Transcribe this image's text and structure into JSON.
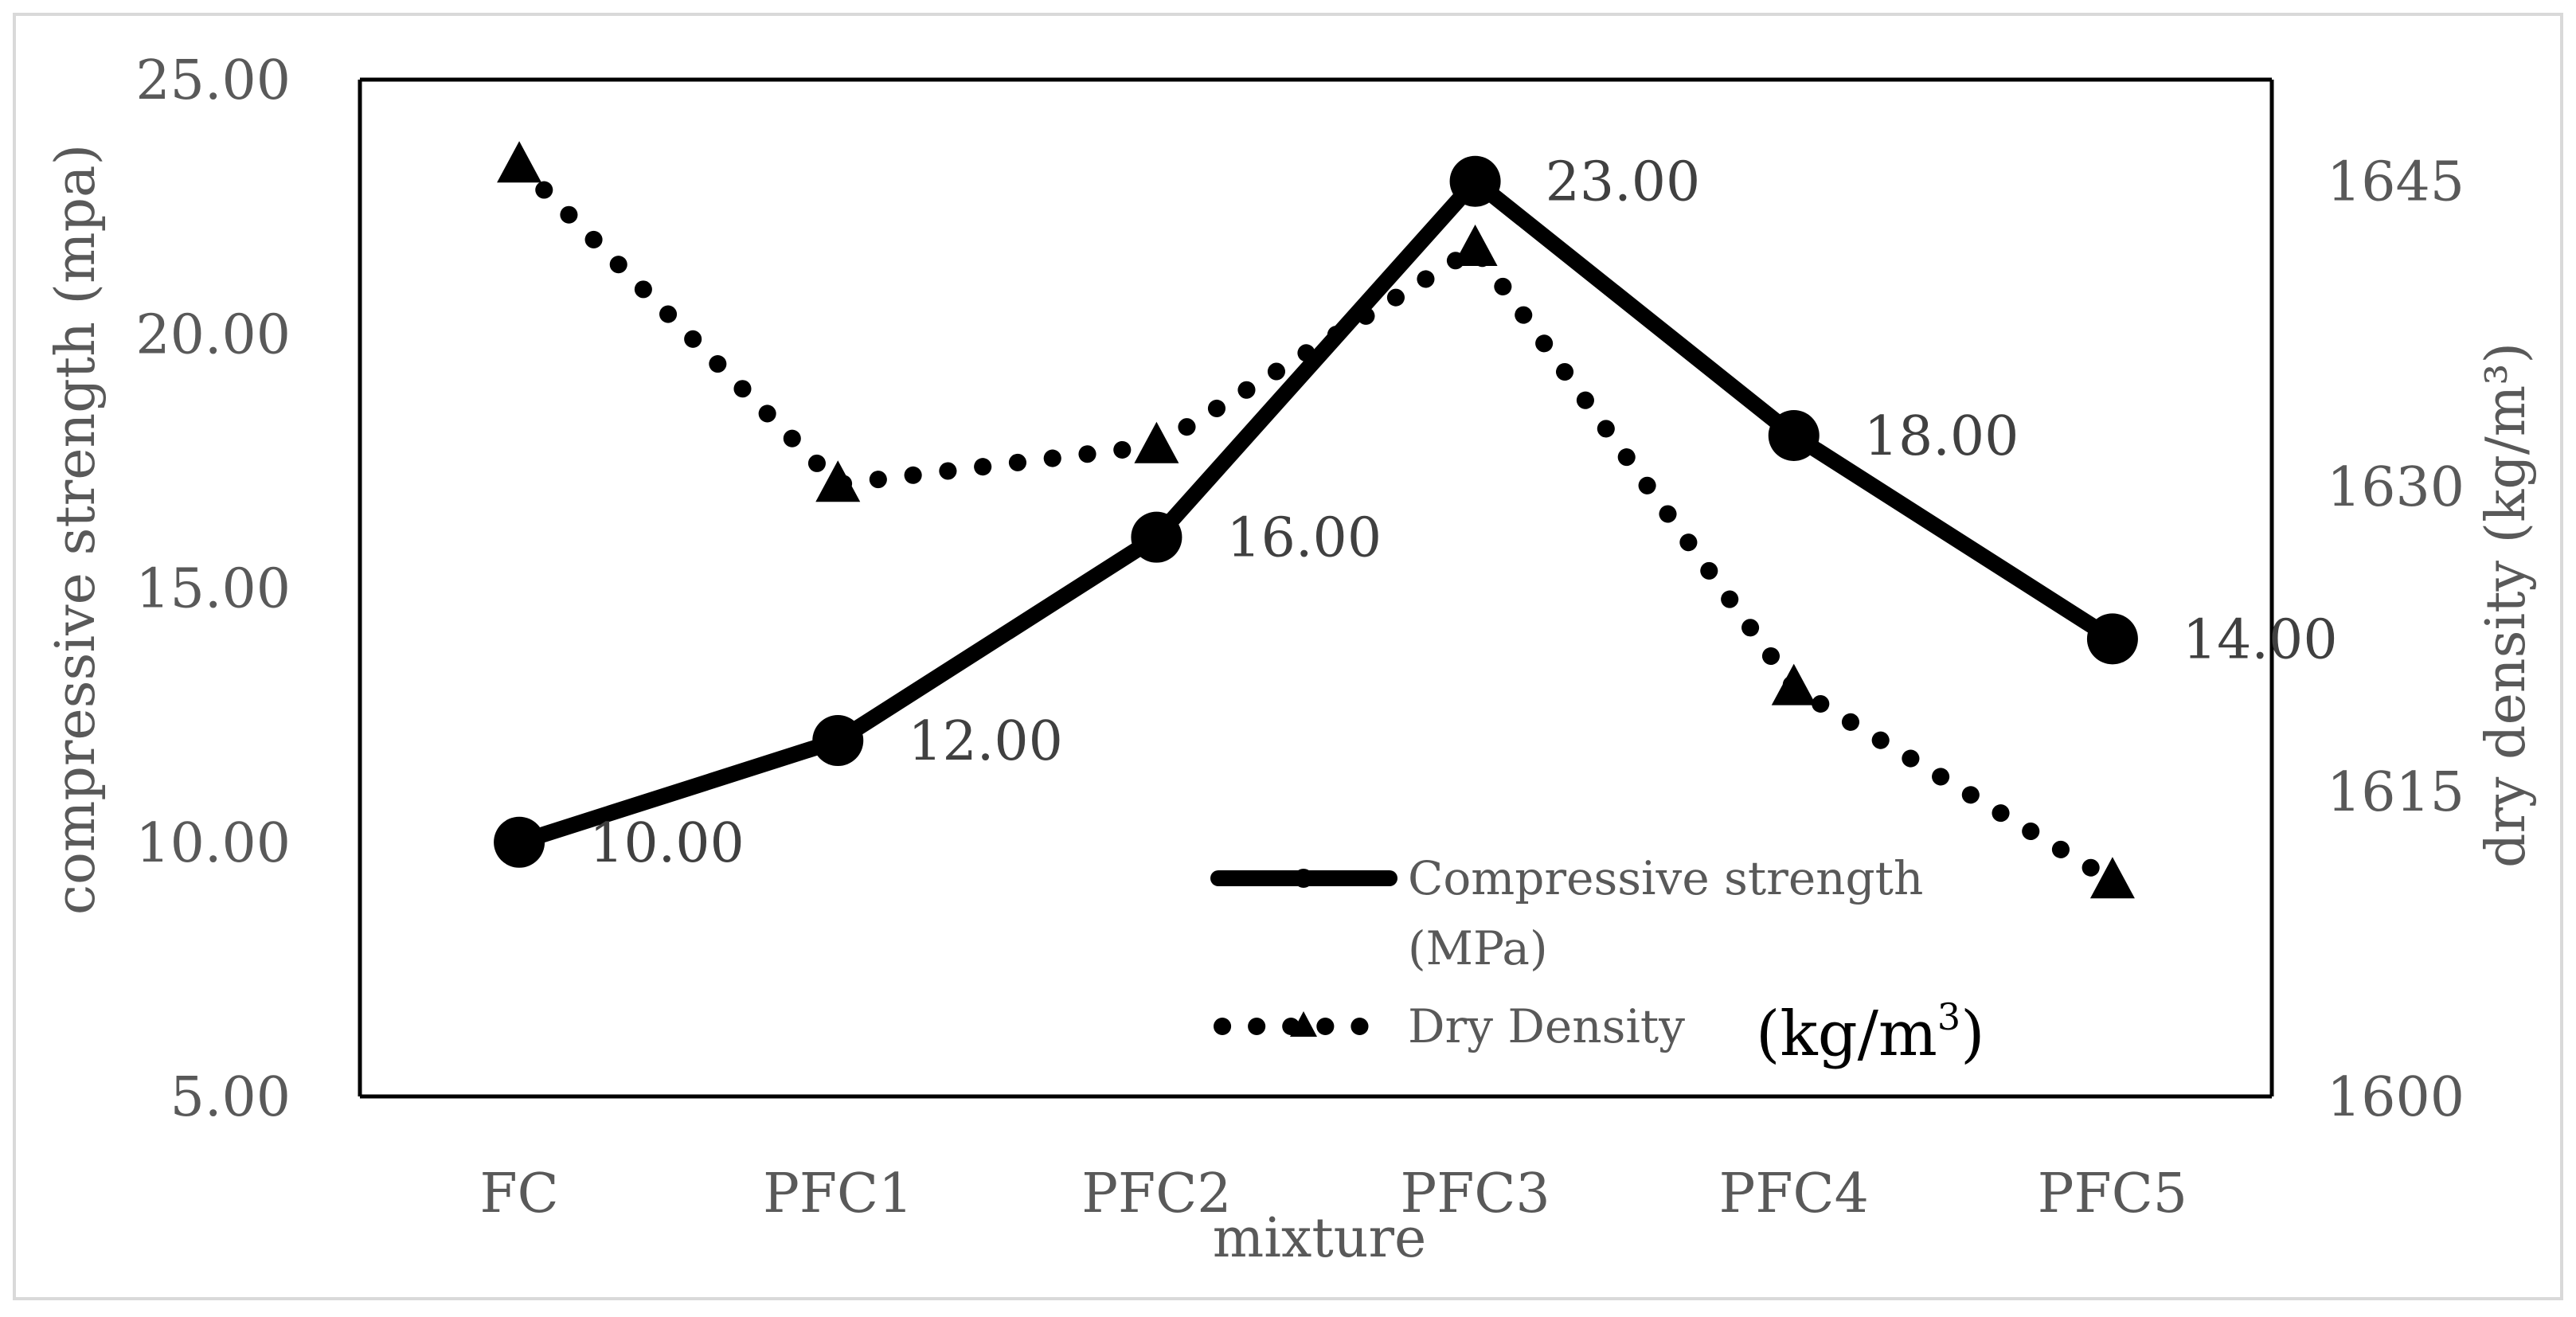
{
  "chart_data": {
    "type": "line",
    "categories": [
      "FC",
      "PFC1",
      "PFC2",
      "PFC3",
      "PFC4",
      "PFC5"
    ],
    "series": [
      {
        "name": "Compressive strength (MPa)",
        "axis": "left",
        "values": [
          10.0,
          12.0,
          16.0,
          23.0,
          18.0,
          14.0
        ],
        "labels": [
          "10.00",
          "12.00",
          "16.00",
          "23.00",
          "18.00",
          "14.00"
        ],
        "marker": "circle",
        "line_style": "solid"
      },
      {
        "name": "Dry Density",
        "axis": "right",
        "values": [
          1645.8,
          1630.1,
          1632.0,
          1641.7,
          1620.1,
          1610.6
        ],
        "marker": "triangle",
        "line_style": "dotted"
      }
    ],
    "xlabel": "mixture",
    "ylabel": "compressive strength  (mpa)",
    "y2label": "dry density (kg/m³)",
    "ylim": [
      5,
      25
    ],
    "y2lim": [
      1600,
      1650
    ],
    "yticks": [
      "5.00",
      "10.00",
      "15.00",
      "20.00",
      "25.00"
    ],
    "y2ticks": [
      "1600",
      "1615",
      "1630",
      "1645"
    ],
    "y2tick_values": [
      1600,
      1615,
      1630,
      1645
    ],
    "legend": {
      "position": "bottom-right inside plot",
      "items": [
        {
          "line1": "Compressive strength",
          "line2": "(MPa)"
        },
        {
          "line1": "Dry Density",
          "line2": ""
        }
      ],
      "unit_note_prefix": "(kg/m",
      "unit_note_sup": "3",
      "unit_note_suffix": ")"
    },
    "grid": false,
    "colors": {
      "line": "#000000",
      "text": "#595959",
      "label": "#404040",
      "frame": "#d9d9d9"
    }
  }
}
